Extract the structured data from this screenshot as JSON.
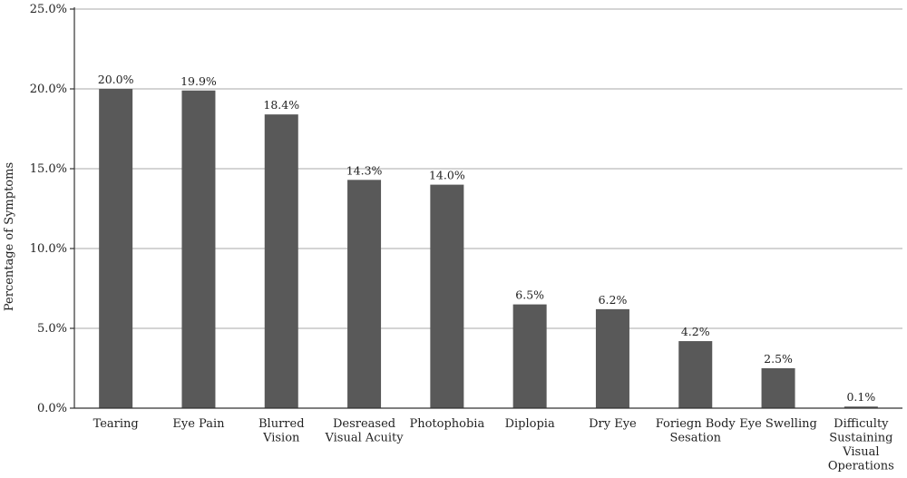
{
  "chart_data": {
    "type": "bar",
    "ylabel": "Percentage of Symptoms",
    "xlabel": "",
    "ylim": [
      0,
      25
    ],
    "yticks": [
      "0.0%",
      "5.0%",
      "10.0%",
      "15.0%",
      "20.0%",
      "25.0%"
    ],
    "grid": true,
    "bar_color": "#595959",
    "categories": [
      [
        "Tearing"
      ],
      [
        "Eye Pain"
      ],
      [
        "Blurred",
        "Vision"
      ],
      [
        "Desreased",
        "Visual Acuity"
      ],
      [
        "Photophobia"
      ],
      [
        "Diplopia"
      ],
      [
        "Dry Eye"
      ],
      [
        "Foriegn Body",
        "Sesation"
      ],
      [
        "Eye Swelling"
      ],
      [
        "Difficulty",
        "Sustaining",
        "Visual",
        "Operations"
      ]
    ],
    "values": [
      20.0,
      19.9,
      18.4,
      14.3,
      14.0,
      6.5,
      6.2,
      4.2,
      2.5,
      0.1
    ],
    "data_labels": [
      "20.0%",
      "19.9%",
      "18.4%",
      "14.3%",
      "14.0%",
      "6.5%",
      "6.2%",
      "4.2%",
      "2.5%",
      "0.1%"
    ]
  }
}
